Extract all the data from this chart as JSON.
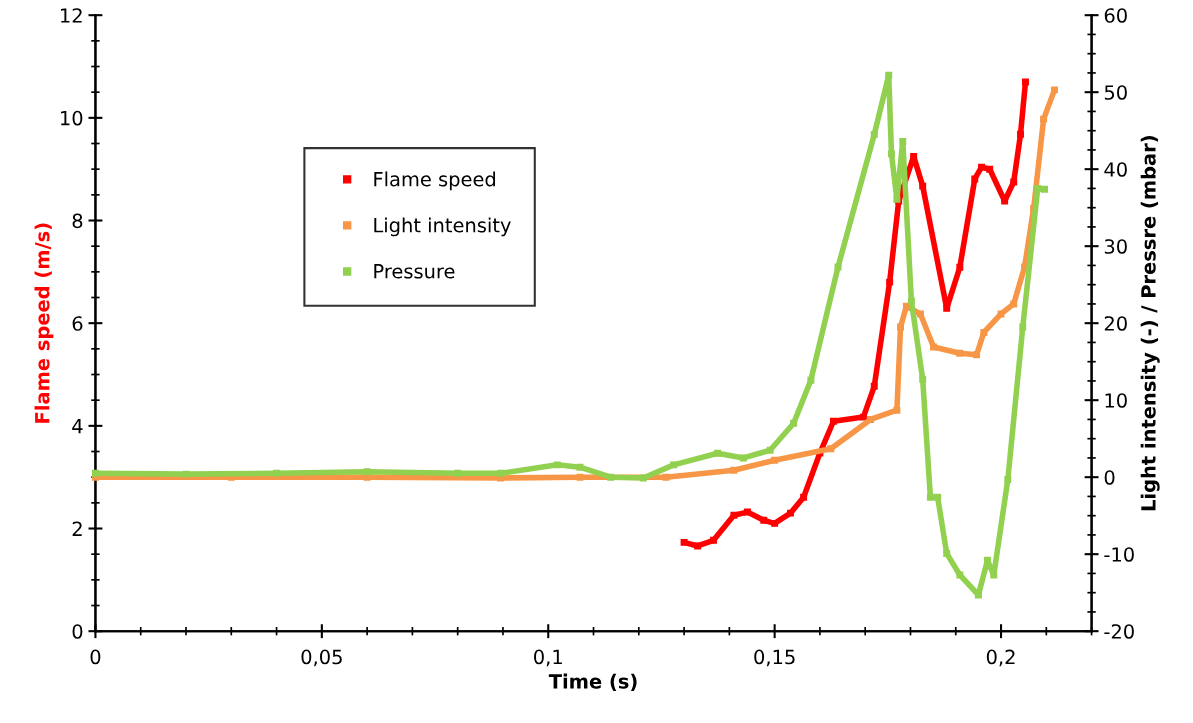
{
  "chart_data": {
    "type": "line",
    "xlabel": "Time (s)",
    "ylabel": "Flame speed (m/s)",
    "y2label": "Light intensity (-) / Pressre (mbar)",
    "xlim": [
      0,
      0.22
    ],
    "xticks": [
      0,
      {
        "value": 0.05,
        "label": "0,05"
      },
      {
        "value": 0.1,
        "label": "0,1"
      },
      {
        "value": 0.15,
        "label": "0,15"
      },
      {
        "value": 0.2,
        "label": "0,2"
      }
    ],
    "ylim": [
      0,
      12
    ],
    "yticks": [
      0,
      2,
      4,
      6,
      8,
      10,
      12
    ],
    "y2lim": [
      -20,
      60
    ],
    "y2ticks": [
      -20,
      -10,
      0,
      10,
      20,
      30,
      40,
      50,
      60
    ],
    "grid": false,
    "legend": "top left",
    "marker": "square",
    "line_style": "solid",
    "series": [
      {
        "name": "Flame speed",
        "color": "#ff0000",
        "x": [
          0.13,
          0.133,
          0.1365,
          0.141,
          0.144,
          0.1476,
          0.15,
          0.1535,
          0.1564,
          0.16,
          0.163,
          0.1696,
          0.172,
          0.1754,
          0.1774,
          0.1807,
          0.1827,
          0.188,
          0.1909,
          0.1942,
          0.1957,
          0.1975,
          0.2008,
          0.2028,
          0.2043,
          0.2054
        ],
        "values": [
          1.73,
          1.66,
          1.77,
          2.26,
          2.32,
          2.16,
          2.1,
          2.3,
          2.61,
          3.47,
          4.09,
          4.17,
          4.77,
          6.8,
          8.38,
          9.25,
          8.67,
          6.29,
          7.09,
          8.81,
          9.04,
          9.0,
          8.38,
          8.75,
          9.68,
          10.7
        ]
      },
      {
        "name": "Light intensity",
        "color": "#f79646",
        "axis": "y2",
        "x": [
          0,
          0.03,
          0.06,
          0.0895,
          0.107,
          0.126,
          0.141,
          0.15,
          0.1624,
          0.1712,
          0.177,
          0.1778,
          0.1791,
          0.1822,
          0.1851,
          0.1909,
          0.1946,
          0.1962,
          0.2,
          0.2028,
          0.2052,
          0.2072,
          0.2094,
          0.2118
        ],
        "values": [
          0,
          0,
          0,
          -0.1,
          0,
          0,
          0.9,
          2.2,
          3.7,
          7.5,
          8.7,
          19.5,
          22.2,
          21.2,
          16.9,
          16.1,
          15.9,
          18.8,
          21.2,
          22.5,
          27.3,
          34.9,
          46.5,
          50.3
        ]
      },
      {
        "name": "Pressure",
        "color": "#92d050",
        "axis": "y2",
        "x": [
          0,
          0.02,
          0.04,
          0.06,
          0.08,
          0.0895,
          0.102,
          0.107,
          0.1138,
          0.121,
          0.1277,
          0.1374,
          0.1431,
          0.149,
          0.1542,
          0.158,
          0.164,
          0.172,
          0.1752,
          0.1758,
          0.177,
          0.1783,
          0.1802,
          0.1827,
          0.1844,
          0.186,
          0.188,
          0.1909,
          0.195,
          0.197,
          0.1984,
          0.2015,
          0.2048,
          0.2081,
          0.2096
        ],
        "values": [
          0.5,
          0.4,
          0.5,
          0.7,
          0.5,
          0.5,
          1.6,
          1.3,
          0,
          -0.1,
          1.6,
          3.1,
          2.5,
          3.5,
          7,
          12.6,
          27.3,
          44.5,
          52.2,
          42,
          36.1,
          43.6,
          22.9,
          12.7,
          -2.6,
          -2.6,
          -9.9,
          -12.7,
          -15.3,
          -10.8,
          -12.7,
          -0.3,
          19.5,
          37.5,
          37.4
        ]
      }
    ]
  }
}
